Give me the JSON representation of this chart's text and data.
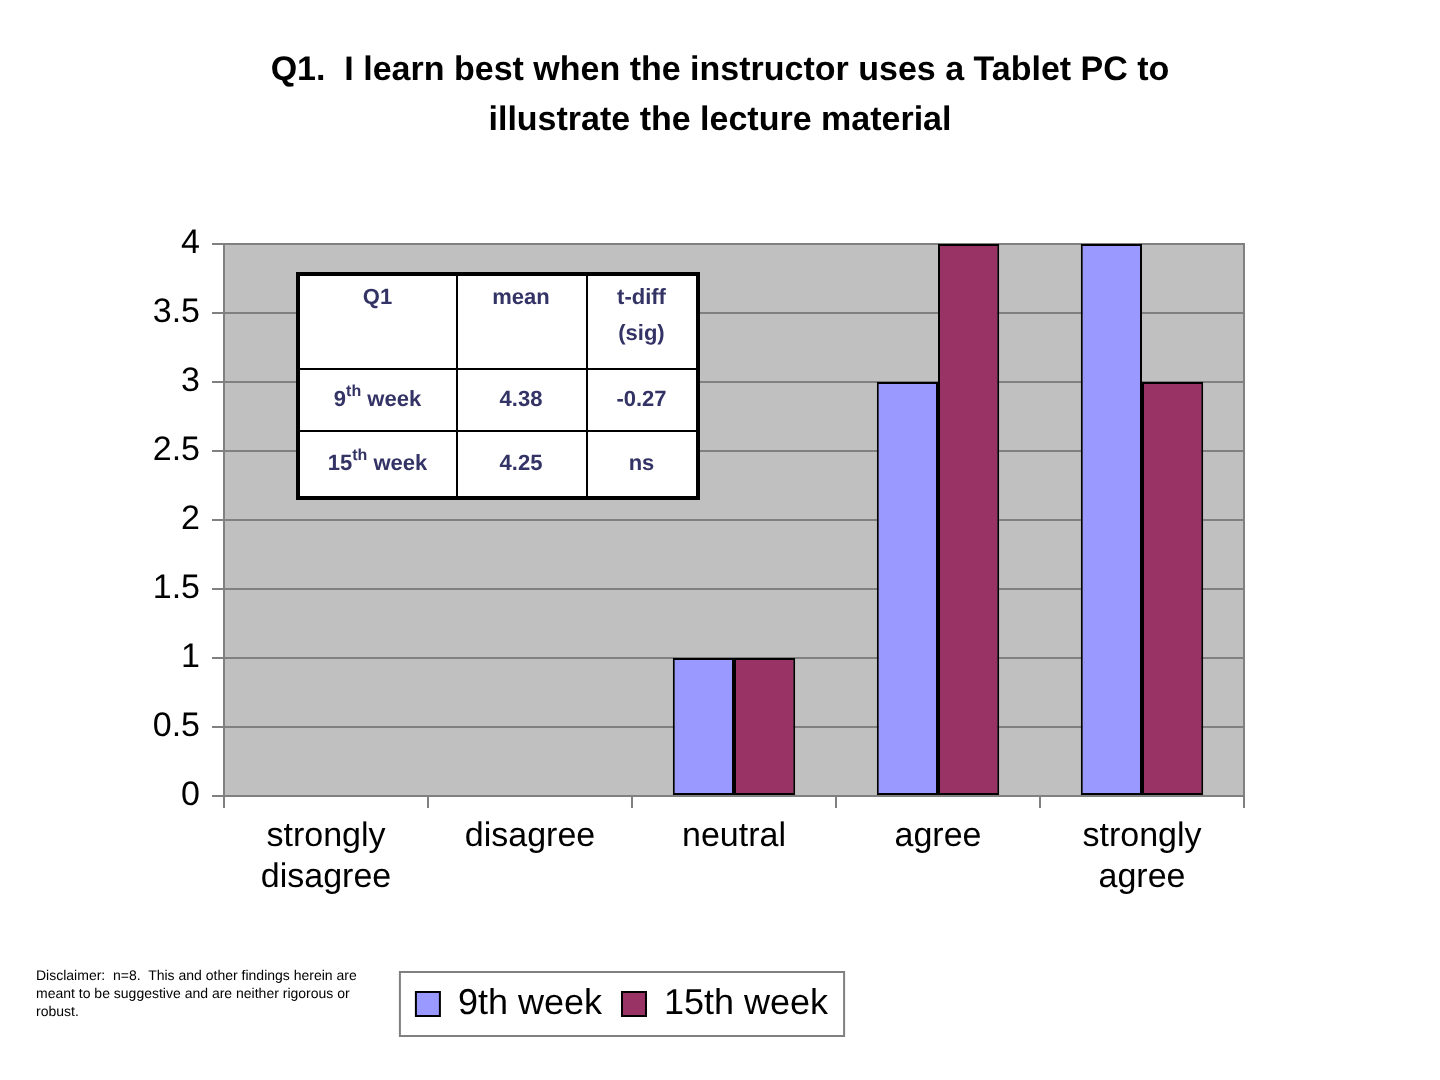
{
  "chart_data": {
    "type": "bar",
    "title": "Q1.  I learn best when the instructor uses a Tablet PC to illustrate the lecture material",
    "categories": [
      "strongly disagree",
      "disagree",
      "neutral",
      "agree",
      "strongly agree"
    ],
    "series": [
      {
        "name": "9th week",
        "color": "#9999ff",
        "values": [
          0,
          0,
          1,
          3,
          4
        ]
      },
      {
        "name": "15th week",
        "color": "#993366",
        "values": [
          0,
          0,
          1,
          4,
          3
        ]
      }
    ],
    "ylim": [
      0,
      4
    ],
    "yticks": [
      0,
      0.5,
      1,
      1.5,
      2,
      2.5,
      3,
      3.5,
      4
    ],
    "grid": "y",
    "legend": "bottom",
    "annotations": [
      "Q1",
      "mean",
      "t-diff (sig)",
      "9$^{th}$ week",
      "4.38",
      "-0.27",
      "15$^{th}$ week",
      "4.25",
      "ns",
      "Disclaimer:  n=8.  This and other findings herein are meant to be suggestive and are neither rigorous or robust."
    ]
  }
}
